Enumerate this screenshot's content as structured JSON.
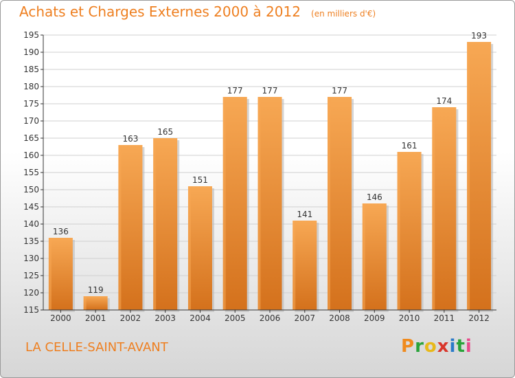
{
  "chart_data": {
    "type": "bar",
    "title": "Achats et Charges Externes 2000 à 2012",
    "subtitle": "(en milliers d'€)",
    "categories": [
      "2000",
      "2001",
      "2002",
      "2003",
      "2004",
      "2005",
      "2006",
      "2007",
      "2008",
      "2009",
      "2010",
      "2011",
      "2012"
    ],
    "values": [
      136,
      119,
      163,
      165,
      151,
      177,
      177,
      141,
      177,
      146,
      161,
      174,
      193
    ],
    "ylim": [
      115,
      195
    ],
    "yticks": [
      115,
      120,
      125,
      130,
      135,
      140,
      145,
      150,
      155,
      160,
      165,
      170,
      175,
      180,
      185,
      190,
      195
    ],
    "grid": true,
    "bar_color": "#ee9a45",
    "bar_color_light": "#f7a854",
    "bar_color_dark": "#d4711c"
  },
  "footer": {
    "place": "LA CELLE-SAINT-AVANT"
  },
  "logo": {
    "letters": [
      "P",
      "r",
      "o",
      "x",
      "i",
      "t",
      "i"
    ],
    "colors": [
      "#f08a1c",
      "#2aa33a",
      "#e8b91a",
      "#d9362b",
      "#2a7ac9",
      "#2aa33a",
      "#e84a8a"
    ]
  },
  "colors": {
    "accent": "#ee7f20",
    "grid": "#cfcfcf",
    "axis": "#333333"
  }
}
